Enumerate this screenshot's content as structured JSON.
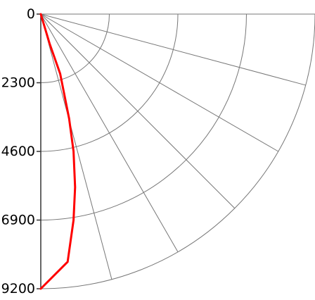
{
  "chart_data": {
    "type": "line",
    "subtype": "polar-quadrant",
    "title": "",
    "y_axis": {
      "direction": "downward",
      "range": [
        0,
        9200
      ],
      "ticks": [
        {
          "value": 0,
          "label": "0"
        },
        {
          "value": 2300,
          "label": "2300"
        },
        {
          "value": 4600,
          "label": "4600"
        },
        {
          "value": 6900,
          "label": "6900"
        },
        {
          "value": 9200,
          "label": "9200"
        }
      ]
    },
    "polar_grid": {
      "radial_lines_deg": [
        0,
        15,
        30,
        45,
        60,
        75,
        90
      ],
      "rings": [
        2300,
        4600,
        6900,
        9200
      ],
      "grid": true
    },
    "series": [
      {
        "color": "#ff0000",
        "points": [
          {
            "x": 0,
            "y": 0
          },
          {
            "x": 300,
            "y": 1000
          },
          {
            "x": 650,
            "y": 2000
          },
          {
            "x": 950,
            "y": 3500
          },
          {
            "x": 1100,
            "y": 4600
          },
          {
            "x": 1150,
            "y": 5800
          },
          {
            "x": 1100,
            "y": 6900
          },
          {
            "x": 900,
            "y": 8300
          },
          {
            "x": 0,
            "y": 9200
          }
        ]
      }
    ],
    "colors": {
      "axis": "#333333",
      "grid": "#777777",
      "line": "#ff0000"
    }
  }
}
